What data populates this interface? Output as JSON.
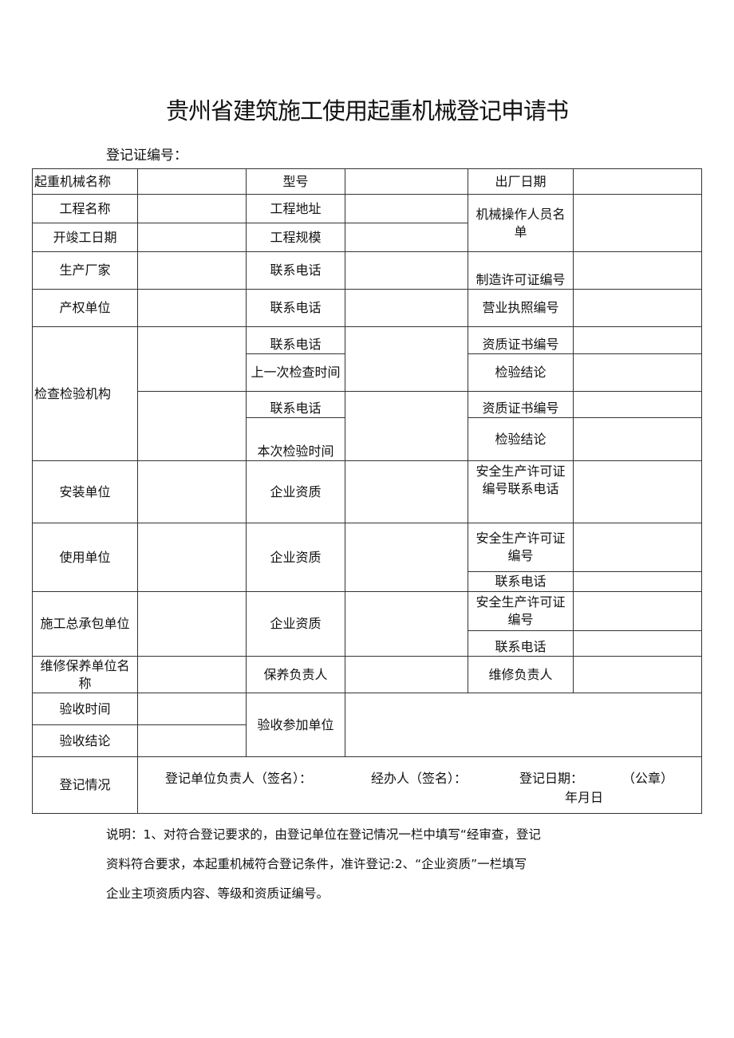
{
  "title": "贵州省建筑施工使用起重机械登记申请书",
  "reg_no_label": "登记证编号：",
  "table": {
    "r1": [
      "起重机械名称",
      "型号",
      "出厂日期"
    ],
    "r2": [
      "工程名称",
      "工程地址",
      "机械操作人员名单"
    ],
    "r3": [
      "开竣工日期",
      "工程规模"
    ],
    "r4": [
      "生产厂家",
      "联系电话",
      "制造许可证编号"
    ],
    "r5": [
      "产权单位",
      "联系电话",
      "营业执照编号"
    ],
    "inspect": {
      "label": "检查检验机构",
      "c": [
        "联系电话",
        "上一次检查时间",
        "联系电话",
        "本次检验时间"
      ],
      "e": [
        "资质证书编号",
        "检验结论",
        "资质证书编号",
        "检验结论"
      ]
    },
    "install": [
      "安装单位",
      "企业资质",
      "安全生产许可证编号联系电话"
    ],
    "user": [
      "使用单位",
      "企业资质",
      "安全生产许可证编号",
      "联系电话"
    ],
    "contractor": [
      "施工总承包单位",
      "企业资质",
      "安全生产许可证编号",
      "联系电话"
    ],
    "maint": [
      "维修保养单位名称",
      "保养负责人",
      "维修负责人"
    ],
    "accept": [
      "验收时间",
      "验收结论",
      "验收参加单位"
    ],
    "reg": {
      "label": "登记情况",
      "leader": "登记单位负责人（签名）：",
      "handler": "经办人（签名）：",
      "date": "登记日期：",
      "seal": "（公章）",
      "ymd": "年月日"
    }
  },
  "notes": [
    "说明：1、对符合登记要求的，由登记单位在登记情况一栏中填写“经审查，登记",
    "资料符合要求，本起重机械符合登记条件，准许登记:2、“企业资质”一栏填写",
    "企业主项资质内容、等级和资质证编号。"
  ]
}
